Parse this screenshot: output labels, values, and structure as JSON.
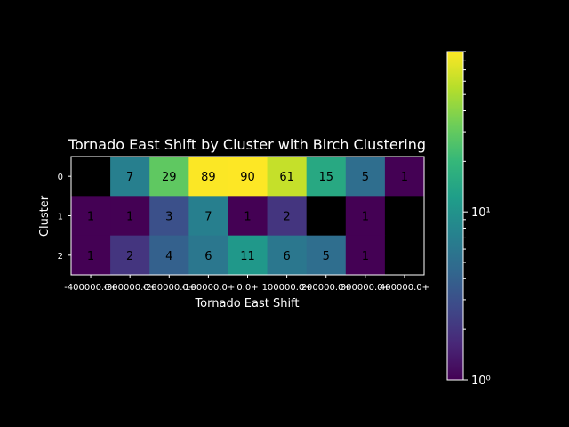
{
  "chart_data": {
    "type": "heatmap",
    "title": "Tornado East Shift by Cluster with Birch Clustering",
    "xlabel": "Tornado East Shift",
    "ylabel": "Cluster",
    "x_tick_labels": [
      "-400000.0+",
      "-300000.0+",
      "-200000.0+",
      "-100000.0+",
      "0.0+",
      "100000.0+",
      "200000.0+",
      "300000.0+",
      "400000.0+"
    ],
    "y_tick_labels": [
      "0",
      "1",
      "2"
    ],
    "values": [
      [
        null,
        7,
        29,
        89,
        90,
        61,
        15,
        5,
        1
      ],
      [
        1,
        1,
        3,
        7,
        1,
        2,
        null,
        1,
        null
      ],
      [
        1,
        2,
        4,
        6,
        11,
        6,
        5,
        1,
        null
      ]
    ],
    "colorbar": {
      "scale": "log",
      "min": 1,
      "max": 90,
      "tick_labels": [
        "10⁰",
        "10¹"
      ],
      "tick_values": [
        1,
        10
      ]
    },
    "colormap": "viridis",
    "background": "#000000",
    "missing_color": "#000000"
  }
}
